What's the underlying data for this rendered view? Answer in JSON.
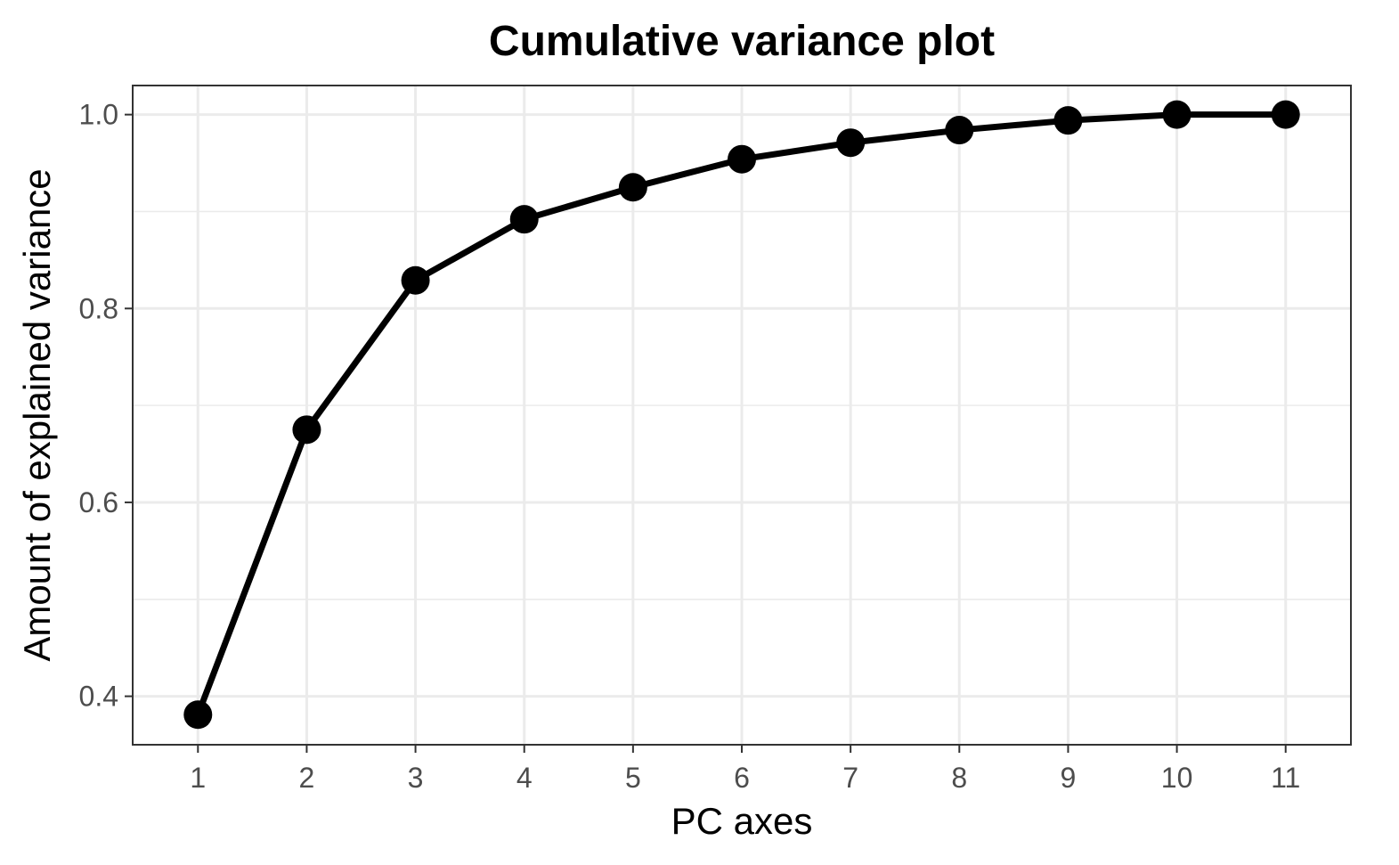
{
  "chart_data": {
    "type": "line",
    "title": "Cumulative variance plot",
    "xlabel": "PC axes",
    "ylabel": "Amount of explained variance",
    "x": [
      1,
      2,
      3,
      4,
      5,
      6,
      7,
      8,
      9,
      10,
      11
    ],
    "series": [
      {
        "values": [
          0.381,
          0.675,
          0.829,
          0.892,
          0.925,
          0.954,
          0.971,
          0.984,
          0.994,
          1.0,
          1.0
        ]
      }
    ],
    "x_tick_labels": [
      "1",
      "2",
      "3",
      "4",
      "5",
      "6",
      "7",
      "8",
      "9",
      "10",
      "11"
    ],
    "y_ticks": [
      0.4,
      0.6,
      0.8,
      1.0
    ],
    "y_tick_labels": [
      "0.4",
      "0.6",
      "0.8",
      "1.0"
    ],
    "y_minor_ticks": [
      0.5,
      0.7,
      0.9
    ],
    "xlim": [
      0.4,
      11.6
    ],
    "ylim": [
      0.35,
      1.03
    ],
    "grid": true,
    "line_color": "#000000",
    "point_color": "#000000"
  }
}
